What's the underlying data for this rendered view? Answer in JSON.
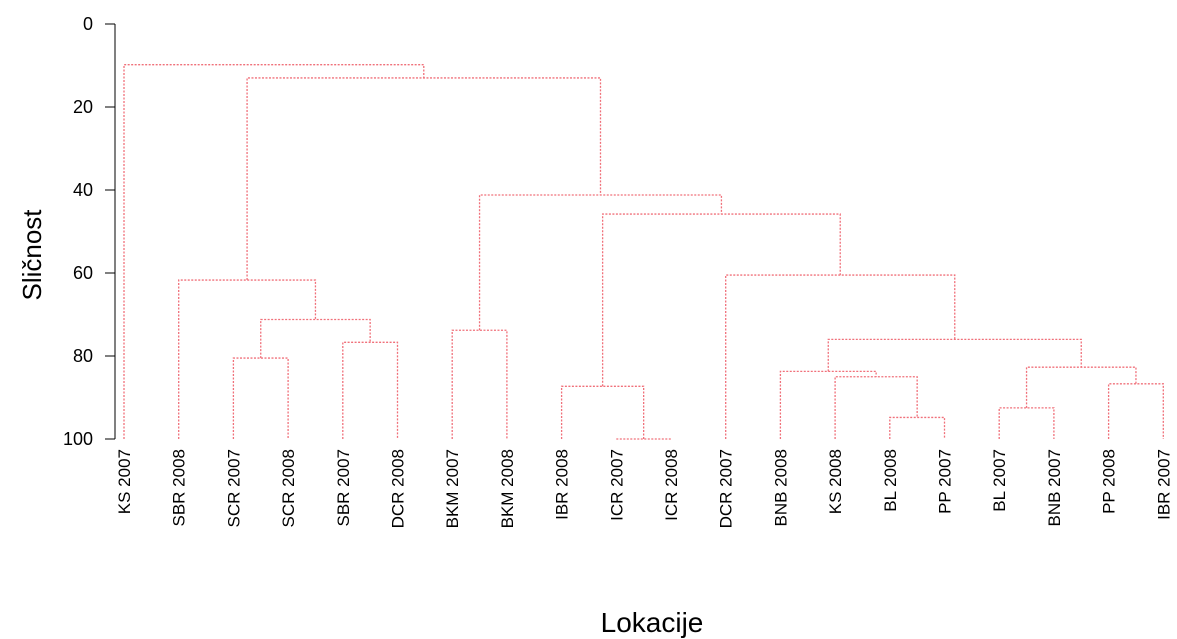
{
  "chart_data": {
    "type": "dendrogram",
    "xlabel": "Lokacije",
    "ylabel": "Sličnost",
    "ylim": [
      0,
      100
    ],
    "yticks": [
      0,
      20,
      40,
      60,
      80,
      100
    ],
    "link_color": "#f0707a",
    "leaves": [
      "KS 2007",
      "SBR 2008",
      "SCR 2007",
      "SCR 2008",
      "SBR 2007",
      "DCR 2008",
      "BKM 2007",
      "BKM 2008",
      "IBR 2008",
      "ICR 2007",
      "ICR 2008",
      "DCR 2007",
      "BNB 2008",
      "KS 2008",
      "BL 2008",
      "PP 2007",
      "BL 2007",
      "BNB 2007",
      "PP 2008",
      "IBR 2007"
    ],
    "merges": [
      {
        "left": "L10",
        "right": "L11",
        "similarity": 100
      },
      {
        "left": "L3",
        "right": "L4",
        "similarity": 80.5
      },
      {
        "left": "L5",
        "right": "L6",
        "similarity": 76.7
      },
      {
        "left": "M2",
        "right": "M3",
        "similarity": 71.2
      },
      {
        "left": "L2",
        "right": "M4",
        "similarity": 61.7
      },
      {
        "left": "L7",
        "right": "L8",
        "similarity": 73.8
      },
      {
        "left": "L9",
        "right": "M1",
        "similarity": 87.3
      },
      {
        "left": "L15",
        "right": "L16",
        "similarity": 94.8
      },
      {
        "left": "L14",
        "right": "M8",
        "similarity": 85.0
      },
      {
        "left": "L13",
        "right": "M9",
        "similarity": 83.7
      },
      {
        "left": "L17",
        "right": "L18",
        "similarity": 92.5
      },
      {
        "left": "L19",
        "right": "L20",
        "similarity": 86.7
      },
      {
        "left": "M11",
        "right": "M12",
        "similarity": 82.7
      },
      {
        "left": "M10",
        "right": "M13",
        "similarity": 76.0
      },
      {
        "left": "L12",
        "right": "M14",
        "similarity": 60.5
      },
      {
        "left": "M7",
        "right": "M15",
        "similarity": 45.8
      },
      {
        "left": "M6",
        "right": "M16",
        "similarity": 41.2
      },
      {
        "left": "M5",
        "right": "M17",
        "similarity": 13.0
      },
      {
        "left": "L1",
        "right": "M18",
        "similarity": 9.8
      }
    ]
  }
}
